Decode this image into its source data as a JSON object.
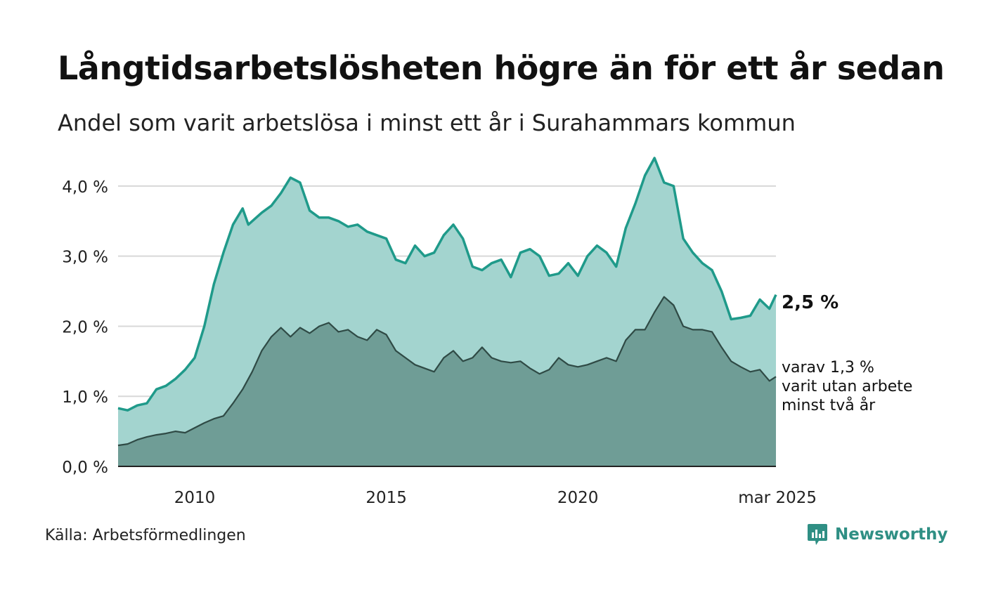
{
  "title": "Långtidsarbetslösheten högre än för ett år sedan",
  "subtitle": "Andel som varit arbetslösa i minst ett år i Surahammars kommun",
  "source": "Källa: Arbetsförmedlingen",
  "brand": {
    "name": "Newsworthy",
    "icon": "newsworthy-logo-icon"
  },
  "colors": {
    "total_line": "#1f9a8a",
    "total_fill": "#a3d4cf",
    "long_line": "#2f4a45",
    "long_fill": "#6f9d96",
    "grid": "#d8d8d8",
    "axis": "#222222"
  },
  "chart_data": {
    "type": "area",
    "ylim": [
      0,
      4.4
    ],
    "yticks": [
      0,
      1,
      2,
      3,
      4
    ],
    "ytick_labels": [
      "0,0 %",
      "1,0 %",
      "2,0 %",
      "3,0 %",
      "4,0 %"
    ],
    "xlim": [
      2008.0,
      2025.17
    ],
    "xticks": [
      2010,
      2015,
      2020,
      2025.17
    ],
    "xtick_labels": [
      "2010",
      "2015",
      "2020",
      "mar 2025"
    ],
    "grid": true,
    "end_labels": {
      "total": "2,5 %",
      "long_lines": [
        "varav 1,3 %",
        "varit utan arbete",
        "minst två år"
      ]
    },
    "series": [
      {
        "key": "total",
        "points": [
          [
            2008.0,
            0.83
          ],
          [
            2008.25,
            0.8
          ],
          [
            2008.5,
            0.87
          ],
          [
            2008.75,
            0.9
          ],
          [
            2009.0,
            1.1
          ],
          [
            2009.25,
            1.15
          ],
          [
            2009.5,
            1.25
          ],
          [
            2009.75,
            1.38
          ],
          [
            2010.0,
            1.55
          ],
          [
            2010.25,
            2.0
          ],
          [
            2010.5,
            2.6
          ],
          [
            2010.75,
            3.05
          ],
          [
            2011.0,
            3.45
          ],
          [
            2011.25,
            3.68
          ],
          [
            2011.4,
            3.45
          ],
          [
            2011.75,
            3.62
          ],
          [
            2012.0,
            3.72
          ],
          [
            2012.25,
            3.9
          ],
          [
            2012.5,
            4.12
          ],
          [
            2012.75,
            4.05
          ],
          [
            2013.0,
            3.65
          ],
          [
            2013.25,
            3.55
          ],
          [
            2013.5,
            3.55
          ],
          [
            2013.75,
            3.5
          ],
          [
            2014.0,
            3.42
          ],
          [
            2014.25,
            3.45
          ],
          [
            2014.5,
            3.35
          ],
          [
            2014.75,
            3.3
          ],
          [
            2015.0,
            3.25
          ],
          [
            2015.25,
            2.95
          ],
          [
            2015.5,
            2.9
          ],
          [
            2015.75,
            3.15
          ],
          [
            2016.0,
            3.0
          ],
          [
            2016.25,
            3.05
          ],
          [
            2016.5,
            3.3
          ],
          [
            2016.75,
            3.45
          ],
          [
            2017.0,
            3.25
          ],
          [
            2017.25,
            2.85
          ],
          [
            2017.5,
            2.8
          ],
          [
            2017.75,
            2.9
          ],
          [
            2018.0,
            2.95
          ],
          [
            2018.25,
            2.7
          ],
          [
            2018.5,
            3.05
          ],
          [
            2018.75,
            3.1
          ],
          [
            2019.0,
            3.0
          ],
          [
            2019.25,
            2.72
          ],
          [
            2019.5,
            2.75
          ],
          [
            2019.75,
            2.9
          ],
          [
            2020.0,
            2.72
          ],
          [
            2020.25,
            3.0
          ],
          [
            2020.5,
            3.15
          ],
          [
            2020.75,
            3.05
          ],
          [
            2021.0,
            2.85
          ],
          [
            2021.25,
            3.4
          ],
          [
            2021.5,
            3.75
          ],
          [
            2021.75,
            4.15
          ],
          [
            2022.0,
            4.4
          ],
          [
            2022.25,
            4.05
          ],
          [
            2022.5,
            4.0
          ],
          [
            2022.75,
            3.25
          ],
          [
            2023.0,
            3.05
          ],
          [
            2023.25,
            2.9
          ],
          [
            2023.5,
            2.8
          ],
          [
            2023.75,
            2.5
          ],
          [
            2024.0,
            2.1
          ],
          [
            2024.25,
            2.12
          ],
          [
            2024.5,
            2.15
          ],
          [
            2024.75,
            2.38
          ],
          [
            2025.0,
            2.25
          ],
          [
            2025.17,
            2.45
          ]
        ]
      },
      {
        "key": "long",
        "points": [
          [
            2008.0,
            0.3
          ],
          [
            2008.25,
            0.32
          ],
          [
            2008.5,
            0.38
          ],
          [
            2008.75,
            0.42
          ],
          [
            2009.0,
            0.45
          ],
          [
            2009.25,
            0.47
          ],
          [
            2009.5,
            0.5
          ],
          [
            2009.75,
            0.48
          ],
          [
            2010.0,
            0.55
          ],
          [
            2010.25,
            0.62
          ],
          [
            2010.5,
            0.68
          ],
          [
            2010.75,
            0.72
          ],
          [
            2011.0,
            0.9
          ],
          [
            2011.25,
            1.1
          ],
          [
            2011.5,
            1.35
          ],
          [
            2011.75,
            1.65
          ],
          [
            2012.0,
            1.85
          ],
          [
            2012.25,
            1.98
          ],
          [
            2012.5,
            1.85
          ],
          [
            2012.75,
            1.98
          ],
          [
            2013.0,
            1.9
          ],
          [
            2013.25,
            2.0
          ],
          [
            2013.5,
            2.05
          ],
          [
            2013.75,
            1.92
          ],
          [
            2014.0,
            1.95
          ],
          [
            2014.25,
            1.85
          ],
          [
            2014.5,
            1.8
          ],
          [
            2014.75,
            1.95
          ],
          [
            2015.0,
            1.88
          ],
          [
            2015.25,
            1.65
          ],
          [
            2015.5,
            1.55
          ],
          [
            2015.75,
            1.45
          ],
          [
            2016.0,
            1.4
          ],
          [
            2016.25,
            1.35
          ],
          [
            2016.5,
            1.55
          ],
          [
            2016.75,
            1.65
          ],
          [
            2017.0,
            1.5
          ],
          [
            2017.25,
            1.55
          ],
          [
            2017.5,
            1.7
          ],
          [
            2017.75,
            1.55
          ],
          [
            2018.0,
            1.5
          ],
          [
            2018.25,
            1.48
          ],
          [
            2018.5,
            1.5
          ],
          [
            2018.75,
            1.4
          ],
          [
            2019.0,
            1.32
          ],
          [
            2019.25,
            1.38
          ],
          [
            2019.5,
            1.55
          ],
          [
            2019.75,
            1.45
          ],
          [
            2020.0,
            1.42
          ],
          [
            2020.25,
            1.45
          ],
          [
            2020.5,
            1.5
          ],
          [
            2020.75,
            1.55
          ],
          [
            2021.0,
            1.5
          ],
          [
            2021.25,
            1.8
          ],
          [
            2021.5,
            1.95
          ],
          [
            2021.75,
            1.95
          ],
          [
            2022.0,
            2.2
          ],
          [
            2022.25,
            2.42
          ],
          [
            2022.5,
            2.3
          ],
          [
            2022.75,
            2.0
          ],
          [
            2023.0,
            1.95
          ],
          [
            2023.25,
            1.95
          ],
          [
            2023.5,
            1.92
          ],
          [
            2023.75,
            1.7
          ],
          [
            2024.0,
            1.5
          ],
          [
            2024.25,
            1.42
          ],
          [
            2024.5,
            1.35
          ],
          [
            2024.75,
            1.38
          ],
          [
            2025.0,
            1.22
          ],
          [
            2025.17,
            1.28
          ]
        ]
      }
    ]
  }
}
